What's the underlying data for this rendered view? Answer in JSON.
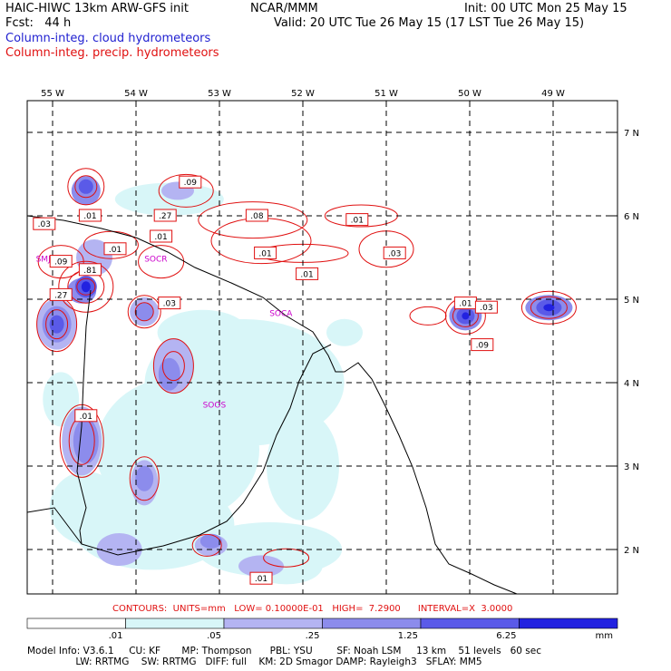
{
  "header": {
    "model_line": "HAIC-HIWC 13km ARW-GFS init",
    "org": "NCAR/MMM",
    "init": "Init: 00 UTC Mon 25 May 15",
    "fcst": "Fcst:   44 h",
    "valid": "Valid: 20 UTC Tue 26 May 15 (17 LST Tue 26 May 15)",
    "field1": "Column-integ. cloud hydrometeors",
    "field2": "Column-integ. precip. hydrometeors"
  },
  "colors": {
    "field1": "#1f1fd0",
    "field2": "#e01010",
    "land": "#000000",
    "grid": "#000000",
    "station": "#cc00cc"
  },
  "lon_labels": [
    "55 W",
    "54 W",
    "53 W",
    "52 W",
    "51 W",
    "50 W",
    "49 W"
  ],
  "lat_labels": [
    "7 N",
    "6 N",
    "5 N",
    "4 N",
    "3 N",
    "2 N"
  ],
  "stations": [
    {
      "id": "SMJP",
      "lon": -55.2,
      "lat": 5.45
    },
    {
      "id": "SOCA",
      "lon": -52.4,
      "lat": 4.8
    },
    {
      "id": "SOOS",
      "lon": -53.2,
      "lat": 3.7
    },
    {
      "id": "SOCR",
      "lon": -53.9,
      "lat": 5.45
    }
  ],
  "contour_labels": [
    {
      "t": ".09",
      "lon": -53.35,
      "lat": 6.4
    },
    {
      "t": ".01",
      "lon": -54.55,
      "lat": 6.0
    },
    {
      "t": ".27",
      "lon": -53.65,
      "lat": 6.0
    },
    {
      "t": ".08",
      "lon": -52.55,
      "lat": 6.0
    },
    {
      "t": ".01",
      "lon": -51.35,
      "lat": 5.95
    },
    {
      "t": ".03",
      "lon": -55.1,
      "lat": 5.9
    },
    {
      "t": ".01",
      "lon": -53.7,
      "lat": 5.75
    },
    {
      "t": ".01",
      "lon": -54.25,
      "lat": 5.6
    },
    {
      "t": ".09",
      "lon": -54.9,
      "lat": 5.45
    },
    {
      "t": ".01",
      "lon": -52.45,
      "lat": 5.55
    },
    {
      "t": ".03",
      "lon": -50.9,
      "lat": 5.55
    },
    {
      "t": ".81",
      "lon": -54.55,
      "lat": 5.35
    },
    {
      "t": ".01",
      "lon": -51.95,
      "lat": 5.3
    },
    {
      "t": ".27",
      "lon": -54.9,
      "lat": 5.05
    },
    {
      "t": ".03",
      "lon": -53.6,
      "lat": 4.95
    },
    {
      "t": ".01",
      "lon": -50.05,
      "lat": 4.95
    },
    {
      "t": ".03",
      "lon": -49.8,
      "lat": 4.9
    },
    {
      "t": ".09",
      "lon": -49.85,
      "lat": 4.45
    },
    {
      "t": ".01",
      "lon": -54.6,
      "lat": 3.6
    },
    {
      "t": ".01",
      "lon": -52.5,
      "lat": 1.65
    }
  ],
  "legend": {
    "contours": "CONTOURS:  UNITS=mm   LOW= 0.10000E-01   HIGH=  7.2900      INTERVAL=X  3.0000",
    "ticks": [
      ".01",
      ".05",
      ".25",
      "1.25",
      "6.25"
    ],
    "units": "mm",
    "fills": [
      "#ffffff",
      "#d8f6f8",
      "#b4b4f2",
      "#8c8cec",
      "#5a5ae8",
      "#2222e0"
    ]
  },
  "footer": {
    "line1": "Model Info: V3.6.1     CU: KF       MP: Thompson      PBL: YSU        SF: Noah LSM     13 km    51 levels   60 sec",
    "line2": "                LW: RRTMG    SW: RRTMG   DIFF: full    KM: 2D Smagor DAMP: Rayleigh3   SFLAY: MM5"
  }
}
